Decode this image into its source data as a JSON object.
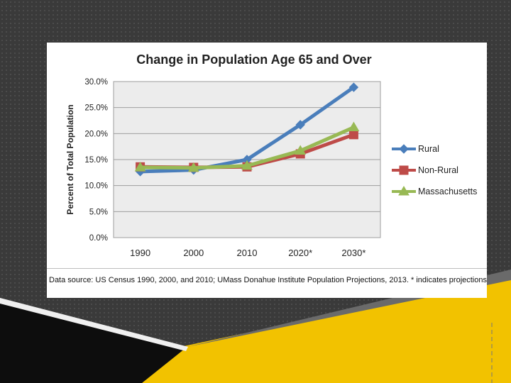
{
  "chart_data": {
    "type": "line",
    "title": "Change in Population Age 65 and Over",
    "ylabel": "Percent of Total Population",
    "xlabel": "",
    "categories": [
      "1990",
      "2000",
      "2010",
      "2020*",
      "2030*"
    ],
    "ylim": [
      0,
      30
    ],
    "yticks": [
      "0.0%",
      "5.0%",
      "10.0%",
      "15.0%",
      "20.0%",
      "25.0%",
      "30.0%"
    ],
    "grid": true,
    "legend_position": "right",
    "series": [
      {
        "name": "Rural",
        "values": [
          12.7,
          13.0,
          15.0,
          21.7,
          28.9
        ],
        "color": "#4a7ebb",
        "marker": "diamond"
      },
      {
        "name": "Non-Rural",
        "values": [
          13.6,
          13.5,
          13.6,
          16.1,
          19.8
        ],
        "color": "#be4b48",
        "marker": "square"
      },
      {
        "name": "Massachusetts",
        "values": [
          13.5,
          13.4,
          13.8,
          16.7,
          21.2
        ],
        "color": "#98b954",
        "marker": "triangle"
      }
    ]
  },
  "footer": {
    "source": "Data source: US Census 1990, 2000, and 2010; UMass Donahue Institute Population Projections, 2013. * indicates projections"
  }
}
